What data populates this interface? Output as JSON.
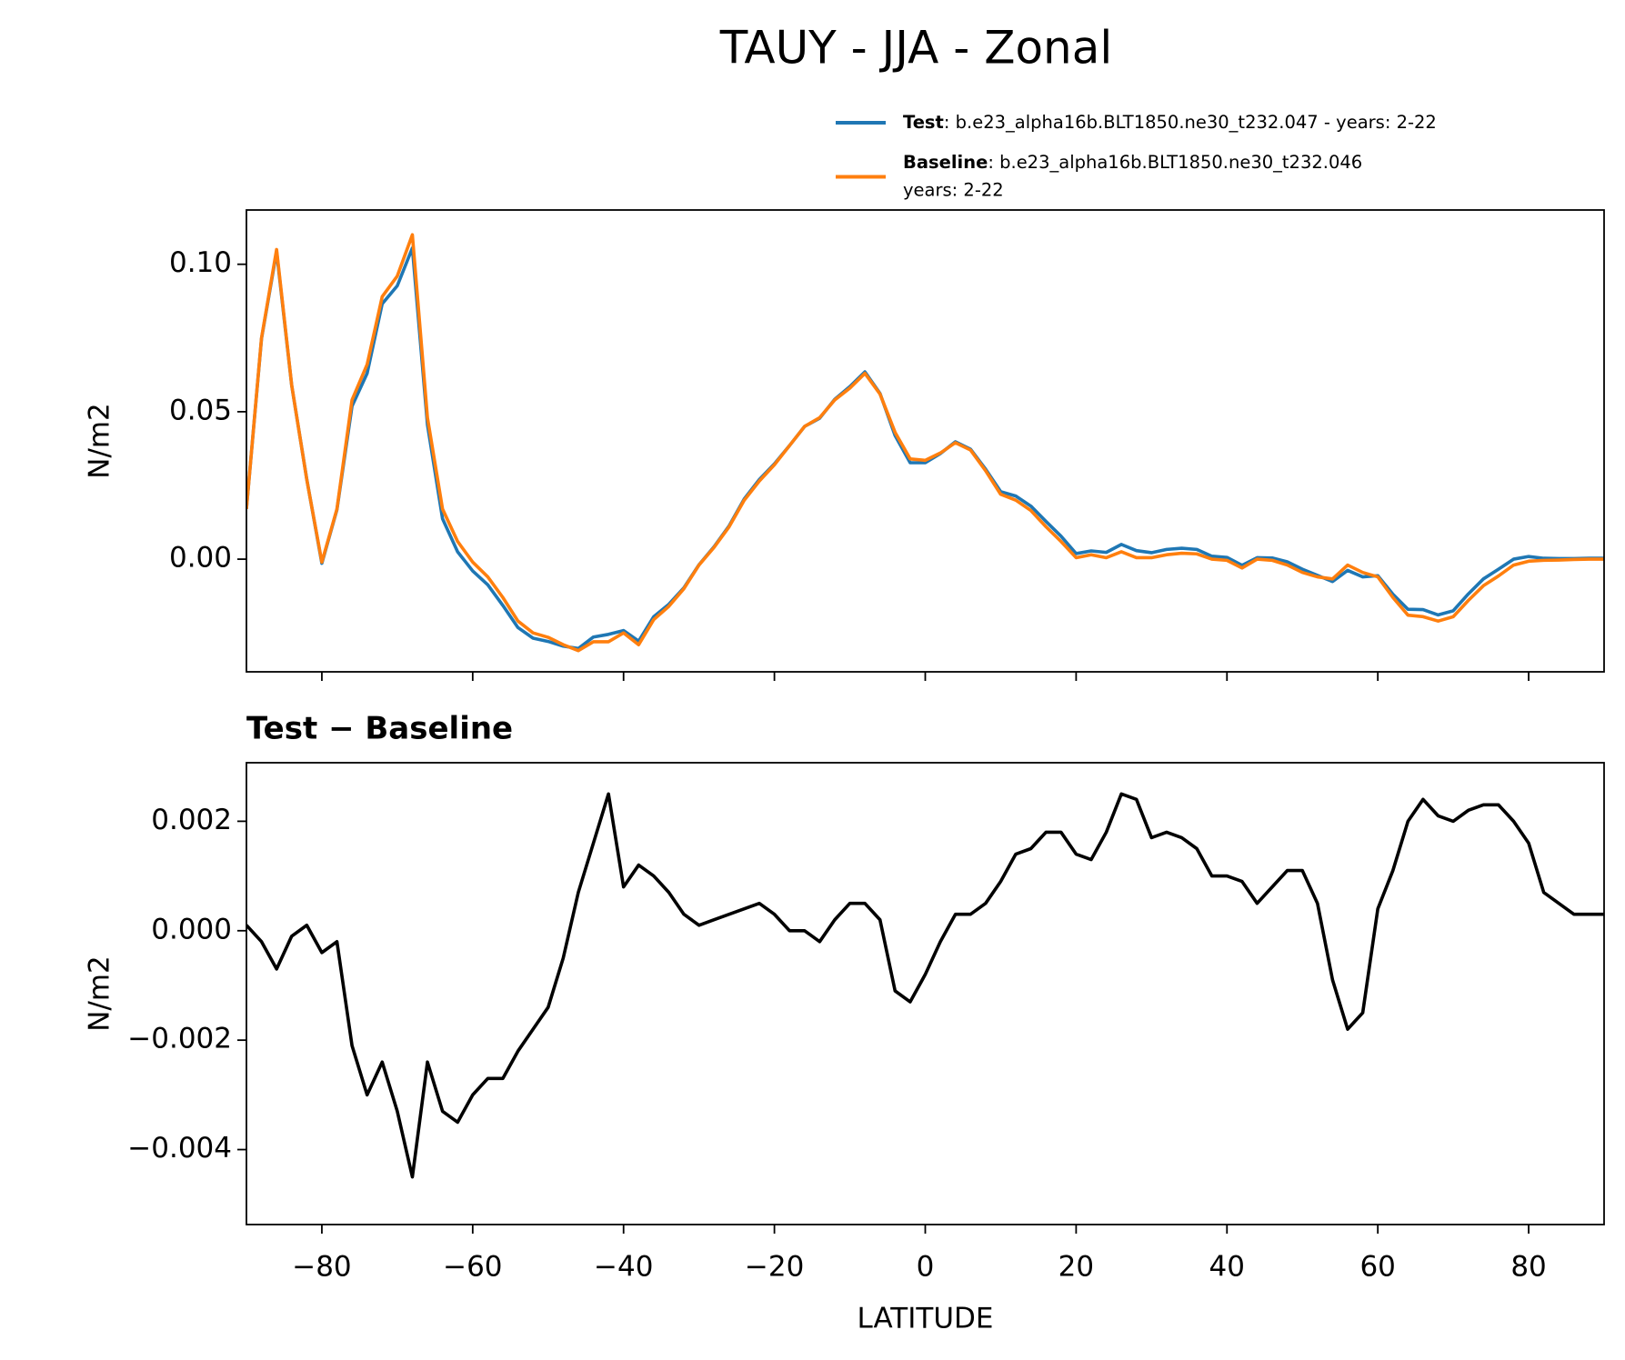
{
  "chart_data": [
    {
      "type": "line",
      "title": "TAUY - JJA - Zonal",
      "ylabel": "N/m2",
      "x": [
        -90,
        -88,
        -86,
        -84,
        -82,
        -80,
        -78,
        -76,
        -74,
        -72,
        -70,
        -68,
        -66,
        -64,
        -62,
        -60,
        -58,
        -56,
        -54,
        -52,
        -50,
        -48,
        -46,
        -44,
        -42,
        -40,
        -38,
        -36,
        -34,
        -32,
        -30,
        -28,
        -26,
        -24,
        -22,
        -20,
        -18,
        -16,
        -14,
        -12,
        -10,
        -8,
        -6,
        -4,
        -2,
        0,
        2,
        4,
        6,
        8,
        10,
        12,
        14,
        16,
        18,
        20,
        22,
        24,
        26,
        28,
        30,
        32,
        34,
        36,
        38,
        40,
        42,
        44,
        46,
        48,
        50,
        52,
        54,
        56,
        58,
        60,
        62,
        64,
        66,
        68,
        70,
        72,
        74,
        76,
        78,
        80,
        82,
        84,
        86,
        88,
        90
      ],
      "series": [
        {
          "name": "Test",
          "description": [
            ": b.e23_alpha16b.BLT1850.ne30_t232.047 - years: 2-22"
          ],
          "color": "#1f77b4",
          "values": [
            0.0171,
            0.0748,
            0.1043,
            0.0589,
            0.0271,
            -0.0014,
            0.0168,
            0.0519,
            0.063,
            0.0866,
            0.0927,
            0.1055,
            0.0456,
            0.0137,
            0.0025,
            -0.004,
            -0.0087,
            -0.0157,
            -0.0232,
            -0.0268,
            -0.0279,
            -0.0295,
            -0.0303,
            -0.0264,
            -0.0255,
            -0.0242,
            -0.0278,
            -0.0195,
            -0.0153,
            -0.0097,
            -0.0019,
            0.0042,
            0.0113,
            0.0204,
            0.027,
            0.0323,
            0.0385,
            0.045,
            0.0478,
            0.0542,
            0.0585,
            0.0635,
            0.0562,
            0.0419,
            0.0327,
            0.0327,
            0.0358,
            0.0398,
            0.0373,
            0.0305,
            0.0229,
            0.0214,
            0.018,
            0.0128,
            0.0078,
            0.0019,
            0.0028,
            0.0023,
            0.005,
            0.0029,
            0.0022,
            0.0033,
            0.0037,
            0.0033,
            0.001,
            0.0006,
            -0.0021,
            0.0005,
            0.0004,
            -0.0009,
            -0.0034,
            -0.0055,
            -0.0076,
            -0.0038,
            -0.006,
            -0.0056,
            -0.0119,
            -0.017,
            -0.0171,
            -0.0189,
            -0.0175,
            -0.0118,
            -0.0067,
            -0.0034,
            0.0,
            0.0009,
            0.0003,
            0.0002,
            0.0002,
            0.0003,
            0.0003
          ]
        },
        {
          "name": "Baseline",
          "description": [
            ": b.e23_alpha16b.BLT1850.ne30_t232.046",
            "years: 2-22"
          ],
          "color": "#ff7f0e",
          "values": [
            0.017,
            0.075,
            0.105,
            0.059,
            0.027,
            -0.001,
            0.017,
            0.054,
            0.066,
            0.089,
            0.096,
            0.11,
            0.048,
            0.017,
            0.006,
            -0.001,
            -0.006,
            -0.013,
            -0.021,
            -0.025,
            -0.0265,
            -0.029,
            -0.031,
            -0.028,
            -0.028,
            -0.025,
            -0.029,
            -0.0205,
            -0.016,
            -0.01,
            -0.002,
            0.004,
            0.011,
            0.02,
            0.0265,
            0.032,
            0.0385,
            0.045,
            0.048,
            0.054,
            0.058,
            0.063,
            0.056,
            0.043,
            0.034,
            0.0335,
            0.036,
            0.0395,
            0.037,
            0.03,
            0.022,
            0.02,
            0.0165,
            0.011,
            0.006,
            0.0005,
            0.0015,
            0.0005,
            0.0025,
            0.0005,
            0.0005,
            0.0015,
            0.002,
            0.0018,
            0.0,
            -0.0004,
            -0.003,
            0.0,
            -0.0004,
            -0.002,
            -0.0045,
            -0.006,
            -0.0067,
            -0.002,
            -0.0045,
            -0.006,
            -0.013,
            -0.019,
            -0.0195,
            -0.021,
            -0.0195,
            -0.014,
            -0.009,
            -0.0057,
            -0.002,
            -0.0007,
            -0.0004,
            -0.0003,
            -0.0001,
            0.0,
            0.0
          ]
        }
      ],
      "xlim": [
        -90,
        90
      ],
      "xticks": [
        -80,
        -60,
        -40,
        -20,
        0,
        20,
        40,
        60,
        80
      ],
      "ylim": [
        -0.0382,
        0.1184
      ],
      "yticks": [
        {
          "value": 0.0,
          "label": "0.00"
        },
        {
          "value": 0.05,
          "label": "0.05"
        },
        {
          "value": 0.1,
          "label": "0.10"
        }
      ],
      "legend": "upper right",
      "grid": false
    },
    {
      "type": "line",
      "title": "Test − Baseline",
      "xlabel": "LATITUDE",
      "ylabel": "N/m2",
      "x": [
        -90,
        -88,
        -86,
        -84,
        -82,
        -80,
        -78,
        -76,
        -74,
        -72,
        -70,
        -68,
        -66,
        -64,
        -62,
        -60,
        -58,
        -56,
        -54,
        -52,
        -50,
        -48,
        -46,
        -44,
        -42,
        -40,
        -38,
        -36,
        -34,
        -32,
        -30,
        -28,
        -26,
        -24,
        -22,
        -20,
        -18,
        -16,
        -14,
        -12,
        -10,
        -8,
        -6,
        -4,
        -2,
        0,
        2,
        4,
        6,
        8,
        10,
        12,
        14,
        16,
        18,
        20,
        22,
        24,
        26,
        28,
        30,
        32,
        34,
        36,
        38,
        40,
        42,
        44,
        46,
        48,
        50,
        52,
        54,
        56,
        58,
        60,
        62,
        64,
        66,
        68,
        70,
        72,
        74,
        76,
        78,
        80,
        82,
        84,
        86,
        88,
        90
      ],
      "series": [
        {
          "color": "#000000",
          "values": [
            0.0001,
            -0.0002,
            -0.0007,
            -0.0001,
            0.0001,
            -0.0004,
            -0.0002,
            -0.0021,
            -0.003,
            -0.0024,
            -0.0033,
            -0.0045,
            -0.0024,
            -0.0033,
            -0.0035,
            -0.003,
            -0.0027,
            -0.0027,
            -0.0022,
            -0.0018,
            -0.0014,
            -0.0005,
            0.0007,
            0.0016,
            0.0025,
            0.0008,
            0.0012,
            0.001,
            0.0007,
            0.0003,
            0.0001,
            0.0002,
            0.0003,
            0.0004,
            0.0005,
            0.0003,
            0.0,
            0.0,
            -0.0002,
            0.0002,
            0.0005,
            0.0005,
            0.0002,
            -0.0011,
            -0.0013,
            -0.0008,
            -0.0002,
            0.0003,
            0.0003,
            0.0005,
            0.0009,
            0.0014,
            0.0015,
            0.0018,
            0.0018,
            0.0014,
            0.0013,
            0.0018,
            0.0025,
            0.0024,
            0.0017,
            0.0018,
            0.0017,
            0.0015,
            0.001,
            0.001,
            0.0009,
            0.0005,
            0.0008,
            0.0011,
            0.0011,
            0.0005,
            -0.0009,
            -0.0018,
            -0.0015,
            0.0004,
            0.0011,
            0.002,
            0.0024,
            0.0021,
            0.002,
            0.0022,
            0.0023,
            0.0023,
            0.002,
            0.0016,
            0.0007,
            0.0005,
            0.0003,
            0.0003,
            0.0003
          ]
        }
      ],
      "xlim": [
        -90,
        90
      ],
      "xticks": [
        {
          "value": -80,
          "label": "−80"
        },
        {
          "value": -60,
          "label": "−60"
        },
        {
          "value": -40,
          "label": "−40"
        },
        {
          "value": -20,
          "label": "−20"
        },
        0,
        20,
        40,
        60,
        80
      ],
      "ylim": [
        -0.00537,
        0.00307
      ],
      "yticks": [
        {
          "value": -0.004,
          "label": "−0.004"
        },
        {
          "value": -0.002,
          "label": "−0.002"
        },
        {
          "value": 0.0,
          "label": "0.000"
        },
        {
          "value": 0.002,
          "label": "0.002"
        }
      ],
      "grid": false
    }
  ]
}
